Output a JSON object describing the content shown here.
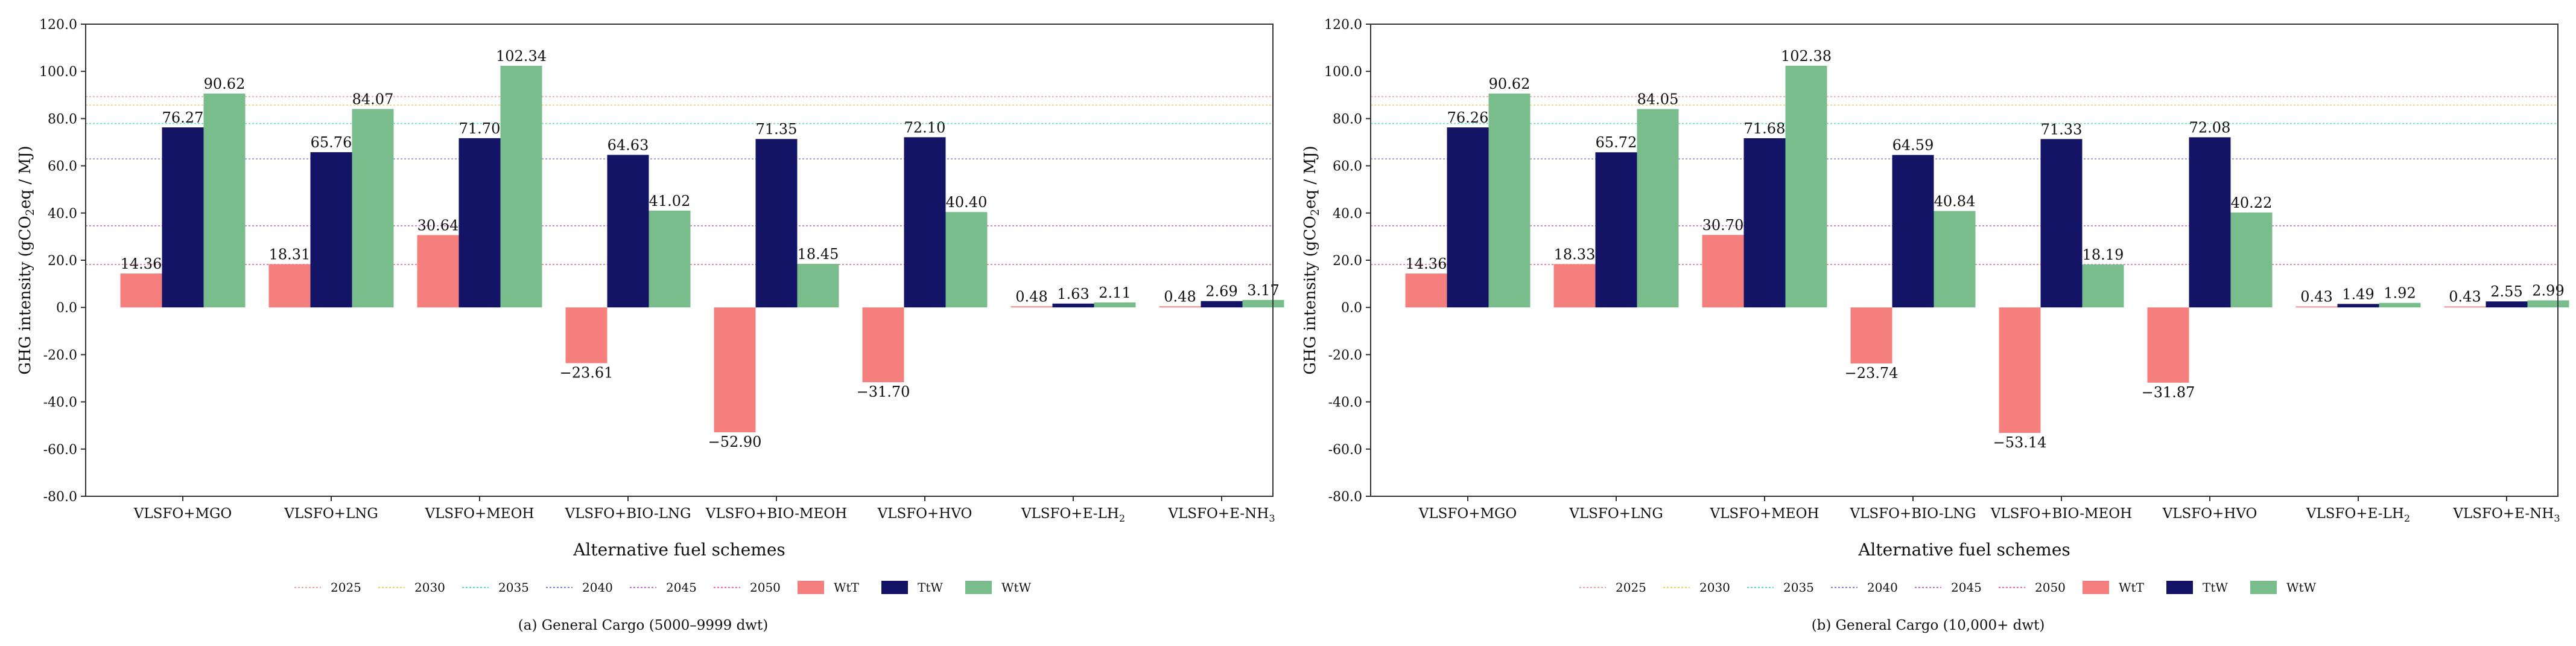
{
  "colors": {
    "wtt": "#f47f7c",
    "ttw": "#141466",
    "wtw": "#78bd8b",
    "axis": "#333333",
    "target_2025": "#f4a0a0",
    "target_2030": "#f2cf62",
    "target_2035": "#58e2b2",
    "target_2040": "#7c7cee",
    "target_2045": "#c76ad1",
    "target_2050": "#f56a95"
  },
  "chart_data": [
    {
      "type": "bar",
      "caption": "(a) General Cargo (5000–9999 dwt)",
      "xlabel": "Alternative fuel schemes",
      "ylabel": "GHG intensity (gCO2eq / MJ)",
      "ylim": [
        -80,
        120
      ],
      "yticks": [
        "-80.0",
        "-60.0",
        "-40.0",
        "-20.0",
        "0.0",
        "20.0",
        "40.0",
        "60.0",
        "80.0",
        "100.0",
        "120.0"
      ],
      "categories": [
        "VLSFO+MGO",
        "VLSFO+LNG",
        "VLSFO+MEOH",
        "VLSFO+BIO-LNG",
        "VLSFO+BIO-MEOH",
        "VLSFO+HVO",
        "VLSFO+E-LH2",
        "VLSFO+E-NH3"
      ],
      "series": [
        {
          "name": "WtT",
          "color_key": "wtt",
          "values": [
            14.36,
            18.31,
            30.64,
            -23.61,
            -52.9,
            -31.7,
            0.48,
            0.48
          ],
          "labels": [
            "14.36",
            "18.31",
            "30.64",
            "−23.61",
            "−52.90",
            "−31.70",
            "0.48",
            "0.48"
          ]
        },
        {
          "name": "TtW",
          "color_key": "ttw",
          "values": [
            76.27,
            65.76,
            71.7,
            64.63,
            71.35,
            72.1,
            1.63,
            2.69
          ],
          "labels": [
            "76.27",
            "65.76",
            "71.70",
            "64.63",
            "71.35",
            "72.10",
            "1.63",
            "2.69"
          ]
        },
        {
          "name": "WtW",
          "color_key": "wtw",
          "values": [
            90.62,
            84.07,
            102.34,
            41.02,
            18.45,
            40.4,
            2.11,
            3.17
          ],
          "labels": [
            "90.62",
            "84.07",
            "102.34",
            "41.02",
            "18.45",
            "40.40",
            "2.11",
            "3.17"
          ]
        }
      ],
      "target_lines": [
        {
          "name": "2025",
          "color_key": "target_2025",
          "value": 89.3
        },
        {
          "name": "2030",
          "color_key": "target_2030",
          "value": 85.7
        },
        {
          "name": "2035",
          "color_key": "target_2035",
          "value": 77.9
        },
        {
          "name": "2040",
          "color_key": "target_2040",
          "value": 62.9
        },
        {
          "name": "2045",
          "color_key": "target_2045",
          "value": 34.6
        },
        {
          "name": "2050",
          "color_key": "target_2050",
          "value": 18.2
        }
      ],
      "legend": "bottom-center"
    },
    {
      "type": "bar",
      "caption": "(b) General Cargo (10,000+ dwt)",
      "xlabel": "Alternative fuel schemes",
      "ylabel": "GHG intensity (gCO2eq / MJ)",
      "ylim": [
        -80,
        120
      ],
      "yticks": [
        "-80.0",
        "-60.0",
        "-40.0",
        "-20.0",
        "0.0",
        "20.0",
        "40.0",
        "60.0",
        "80.0",
        "100.0",
        "120.0"
      ],
      "categories": [
        "VLSFO+MGO",
        "VLSFO+LNG",
        "VLSFO+MEOH",
        "VLSFO+BIO-LNG",
        "VLSFO+BIO-MEOH",
        "VLSFO+HVO",
        "VLSFO+E-LH2",
        "VLSFO+E-NH3"
      ],
      "series": [
        {
          "name": "WtT",
          "color_key": "wtt",
          "values": [
            14.36,
            18.33,
            30.7,
            -23.74,
            -53.14,
            -31.87,
            0.43,
            0.43
          ],
          "labels": [
            "14.36",
            "18.33",
            "30.70",
            "−23.74",
            "−53.14",
            "−31.87",
            "0.43",
            "0.43"
          ]
        },
        {
          "name": "TtW",
          "color_key": "ttw",
          "values": [
            76.26,
            65.72,
            71.68,
            64.59,
            71.33,
            72.08,
            1.49,
            2.55
          ],
          "labels": [
            "76.26",
            "65.72",
            "71.68",
            "64.59",
            "71.33",
            "72.08",
            "1.49",
            "2.55"
          ]
        },
        {
          "name": "WtW",
          "color_key": "wtw",
          "values": [
            90.62,
            84.05,
            102.38,
            40.84,
            18.19,
            40.22,
            1.92,
            2.99
          ],
          "labels": [
            "90.62",
            "84.05",
            "102.38",
            "40.84",
            "18.19",
            "40.22",
            "1.92",
            "2.99"
          ]
        }
      ],
      "target_lines": [
        {
          "name": "2025",
          "color_key": "target_2025",
          "value": 89.3
        },
        {
          "name": "2030",
          "color_key": "target_2030",
          "value": 85.7
        },
        {
          "name": "2035",
          "color_key": "target_2035",
          "value": 77.9
        },
        {
          "name": "2040",
          "color_key": "target_2040",
          "value": 62.9
        },
        {
          "name": "2045",
          "color_key": "target_2045",
          "value": 34.6
        },
        {
          "name": "2050",
          "color_key": "target_2050",
          "value": 18.2
        }
      ],
      "legend": "bottom-center"
    }
  ]
}
